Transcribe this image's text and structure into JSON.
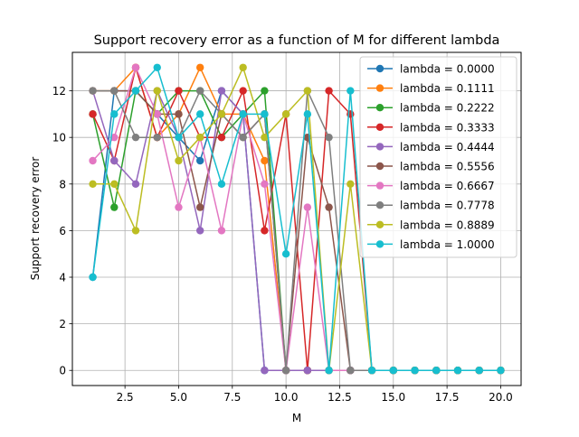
{
  "chart_data": {
    "type": "line",
    "title": "Support recovery error as a function of M for different lambda",
    "xlabel": "M",
    "ylabel": "Support recovery error",
    "xlim": [
      0.05,
      20.95
    ],
    "ylim": [
      -0.65,
      13.65
    ],
    "x_ticks": [
      2.5,
      5.0,
      7.5,
      10.0,
      12.5,
      15.0,
      17.5,
      20.0
    ],
    "x_tick_labels": [
      "2.5",
      "5.0",
      "7.5",
      "10.0",
      "12.5",
      "15.0",
      "17.5",
      "20.0"
    ],
    "y_ticks": [
      0,
      2,
      4,
      6,
      8,
      10,
      12
    ],
    "y_tick_labels": [
      "0",
      "2",
      "4",
      "6",
      "8",
      "10",
      "12"
    ],
    "grid": true,
    "legend_position": "top-right",
    "marker": "circle",
    "x": [
      1,
      2,
      3,
      4,
      5,
      6,
      7,
      8,
      9,
      10,
      11,
      12,
      13,
      14,
      15,
      16,
      17,
      18,
      19,
      20
    ],
    "series": [
      {
        "name": "lambda = 0.0000",
        "color": "#1f77b4",
        "values": [
          4,
          12,
          12,
          11,
          10,
          9,
          12,
          11,
          0,
          0,
          0,
          0,
          0,
          0,
          0,
          0,
          0,
          0,
          0,
          0
        ]
      },
      {
        "name": "lambda = 0.1111",
        "color": "#ff7f0e",
        "values": [
          12,
          12,
          13,
          10,
          11,
          13,
          11,
          11,
          9,
          0,
          0,
          0,
          0,
          0,
          0,
          0,
          0,
          0,
          0,
          0
        ]
      },
      {
        "name": "lambda = 0.2222",
        "color": "#2ca02c",
        "values": [
          11,
          7,
          12,
          11,
          12,
          12,
          10,
          11,
          12,
          0,
          0,
          0,
          0,
          0,
          0,
          0,
          0,
          0,
          0,
          0
        ]
      },
      {
        "name": "lambda = 0.3333",
        "color": "#d62728",
        "values": [
          11,
          9,
          13,
          10,
          12,
          10,
          10,
          12,
          6,
          11,
          0,
          12,
          11,
          0,
          0,
          0,
          0,
          0,
          0,
          0
        ]
      },
      {
        "name": "lambda = 0.4444",
        "color": "#9467bd",
        "values": [
          12,
          9,
          8,
          12,
          10,
          6,
          12,
          11,
          0,
          0,
          0,
          0,
          0,
          0,
          0,
          0,
          0,
          0,
          0,
          0
        ]
      },
      {
        "name": "lambda = 0.5556",
        "color": "#8c564b",
        "values": [
          12,
          12,
          12,
          11,
          11,
          7,
          11,
          10,
          11,
          0,
          10,
          7,
          0,
          0,
          0,
          0,
          0,
          0,
          0,
          0
        ]
      },
      {
        "name": "lambda = 0.6667",
        "color": "#e377c2",
        "values": [
          9,
          10,
          13,
          11,
          7,
          10,
          6,
          11,
          8,
          0,
          7,
          0,
          0,
          0,
          0,
          0,
          0,
          0,
          0,
          0
        ]
      },
      {
        "name": "lambda = 0.7778",
        "color": "#7f7f7f",
        "values": [
          12,
          12,
          10,
          10,
          10,
          12,
          11,
          10,
          11,
          0,
          12,
          10,
          0,
          0,
          0,
          0,
          0,
          0,
          0,
          0
        ]
      },
      {
        "name": "lambda = 0.8889",
        "color": "#bcbd22",
        "values": [
          8,
          8,
          6,
          12,
          9,
          10,
          11,
          13,
          10,
          11,
          12,
          0,
          8,
          0,
          0,
          0,
          0,
          0,
          0,
          0
        ]
      },
      {
        "name": "lambda = 1.0000",
        "color": "#17becf",
        "values": [
          4,
          11,
          12,
          13,
          10,
          11,
          8,
          11,
          11,
          5,
          11,
          0,
          12,
          0,
          0,
          0,
          0,
          0,
          0,
          0
        ]
      }
    ]
  }
}
